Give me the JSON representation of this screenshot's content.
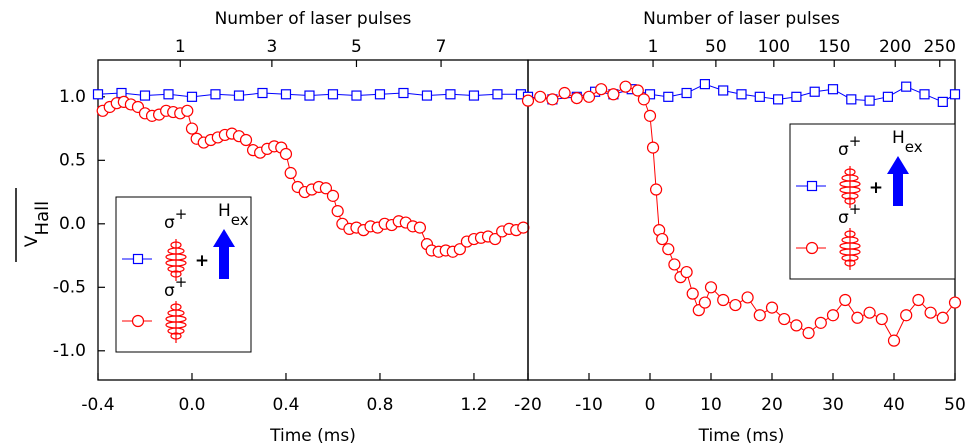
{
  "chart_data": [
    {
      "type": "line",
      "x2label": "Number of laser pulses",
      "xlabel": "Time (ms)",
      "y_label": "V",
      "y_label_sub": "Hall",
      "xlim": [
        -0.4,
        1.43
      ],
      "ylim": [
        -1.23,
        1.29
      ],
      "xticks": [
        -0.4,
        {
          "value": 0,
          "label": "0.0"
        },
        0.4,
        0.8,
        1.2
      ],
      "x2ticks": [
        {
          "value": -0.05,
          "label": "1"
        },
        {
          "value": 0.34,
          "label": "3"
        },
        {
          "value": 0.7,
          "label": "5"
        },
        {
          "value": 1.06,
          "label": "7"
        }
      ],
      "yticks": [
        {
          "value": 1,
          "label": "1.0"
        },
        0.5,
        {
          "value": 0,
          "label": "0.0"
        },
        -0.5,
        {
          "value": -1,
          "label": "-1.0"
        }
      ],
      "legend_loc": "lower left",
      "series": [
        {
          "color": "#0000ff",
          "marker": "square",
          "label": "σ",
          "label_sup": "+",
          "plus": "+",
          "field": "H",
          "field_sub": "ex",
          "x": [
            -0.4,
            -0.3,
            -0.2,
            -0.1,
            0.0,
            0.1,
            0.2,
            0.3,
            0.4,
            0.5,
            0.6,
            0.7,
            0.8,
            0.9,
            1.0,
            1.1,
            1.2,
            1.3,
            1.4
          ],
          "values": [
            1.02,
            1.03,
            1.01,
            1.02,
            1.0,
            1.02,
            1.01,
            1.03,
            1.02,
            1.01,
            1.02,
            1.01,
            1.02,
            1.03,
            1.01,
            1.02,
            1.01,
            1.02,
            1.02
          ]
        },
        {
          "color": "#ff0000",
          "marker": "circle",
          "label": "σ",
          "label_sup": "+",
          "x": [
            -0.38,
            -0.35,
            -0.32,
            -0.29,
            -0.26,
            -0.23,
            -0.2,
            -0.17,
            -0.14,
            -0.11,
            -0.08,
            -0.05,
            -0.02,
            0.0,
            0.02,
            0.05,
            0.08,
            0.11,
            0.14,
            0.17,
            0.2,
            0.23,
            0.26,
            0.29,
            0.32,
            0.35,
            0.38,
            0.4,
            0.42,
            0.45,
            0.48,
            0.51,
            0.54,
            0.57,
            0.6,
            0.62,
            0.64,
            0.67,
            0.7,
            0.73,
            0.76,
            0.79,
            0.82,
            0.85,
            0.88,
            0.91,
            0.94,
            0.97,
            1.0,
            1.02,
            1.05,
            1.08,
            1.11,
            1.14,
            1.17,
            1.2,
            1.23,
            1.26,
            1.29,
            1.32,
            1.35,
            1.38,
            1.41
          ],
          "values": [
            0.89,
            0.92,
            0.95,
            0.96,
            0.94,
            0.92,
            0.87,
            0.85,
            0.86,
            0.89,
            0.88,
            0.87,
            0.89,
            0.75,
            0.67,
            0.64,
            0.66,
            0.68,
            0.7,
            0.71,
            0.69,
            0.66,
            0.58,
            0.56,
            0.59,
            0.61,
            0.6,
            0.55,
            0.4,
            0.29,
            0.25,
            0.27,
            0.29,
            0.28,
            0.22,
            0.1,
            0.0,
            -0.04,
            -0.03,
            -0.05,
            -0.02,
            -0.03,
            0.0,
            -0.01,
            0.02,
            0.01,
            -0.02,
            -0.03,
            -0.16,
            -0.21,
            -0.22,
            -0.21,
            -0.22,
            -0.2,
            -0.14,
            -0.12,
            -0.11,
            -0.1,
            -0.12,
            -0.06,
            -0.04,
            -0.05,
            -0.03
          ]
        }
      ]
    },
    {
      "type": "line",
      "x2label": "Number of laser pulses",
      "xlabel": "Time (ms)",
      "xlim": [
        -20,
        50
      ],
      "ylim": [
        -1.23,
        1.29
      ],
      "xticks": [
        -20,
        -10,
        0,
        10,
        20,
        30,
        40,
        50
      ],
      "x2ticks": [
        {
          "value": 0.5,
          "label": "1"
        },
        {
          "value": 10.8,
          "label": "50"
        },
        {
          "value": 20.3,
          "label": "100"
        },
        {
          "value": 30.2,
          "label": "150"
        },
        {
          "value": 40.2,
          "label": "200"
        },
        {
          "value": 47.5,
          "label": "250"
        }
      ],
      "legend_loc": "upper right",
      "series": [
        {
          "color": "#0000ff",
          "marker": "square",
          "label": "σ",
          "label_sup": "+",
          "plus": "+",
          "field": "H",
          "field_sub": "ex",
          "x": [
            -20,
            -16,
            -12,
            -9,
            -6,
            -3,
            0,
            3,
            6,
            9,
            12,
            15,
            18,
            21,
            24,
            27,
            30,
            33,
            36,
            39,
            42,
            45,
            48,
            50
          ],
          "values": [
            1.0,
            0.98,
            1.0,
            1.04,
            1.02,
            1.06,
            1.02,
            1.0,
            1.03,
            1.1,
            1.05,
            1.02,
            1.0,
            0.98,
            1.0,
            1.04,
            1.06,
            0.98,
            0.97,
            1.0,
            1.08,
            1.02,
            0.96,
            1.02
          ]
        },
        {
          "color": "#ff0000",
          "marker": "circle",
          "label": "σ",
          "label_sup": "+",
          "x": [
            -20,
            -18,
            -16,
            -14,
            -12,
            -10,
            -8,
            -6,
            -4,
            -2,
            -1,
            0,
            0.5,
            1,
            1.5,
            2,
            3,
            4,
            5,
            6,
            7,
            8,
            9,
            10,
            12,
            14,
            16,
            18,
            20,
            22,
            24,
            26,
            28,
            30,
            32,
            34,
            36,
            38,
            40,
            42,
            44,
            46,
            48,
            50
          ],
          "values": [
            0.97,
            1.0,
            0.98,
            1.03,
            0.99,
            1.0,
            1.06,
            1.02,
            1.08,
            1.05,
            0.98,
            0.85,
            0.6,
            0.27,
            -0.05,
            -0.12,
            -0.2,
            -0.32,
            -0.42,
            -0.38,
            -0.55,
            -0.68,
            -0.62,
            -0.5,
            -0.6,
            -0.64,
            -0.58,
            -0.72,
            -0.66,
            -0.75,
            -0.8,
            -0.86,
            -0.78,
            -0.72,
            -0.6,
            -0.74,
            -0.7,
            -0.75,
            -0.92,
            -0.72,
            -0.6,
            -0.7,
            -0.74,
            -0.62
          ]
        }
      ]
    }
  ]
}
